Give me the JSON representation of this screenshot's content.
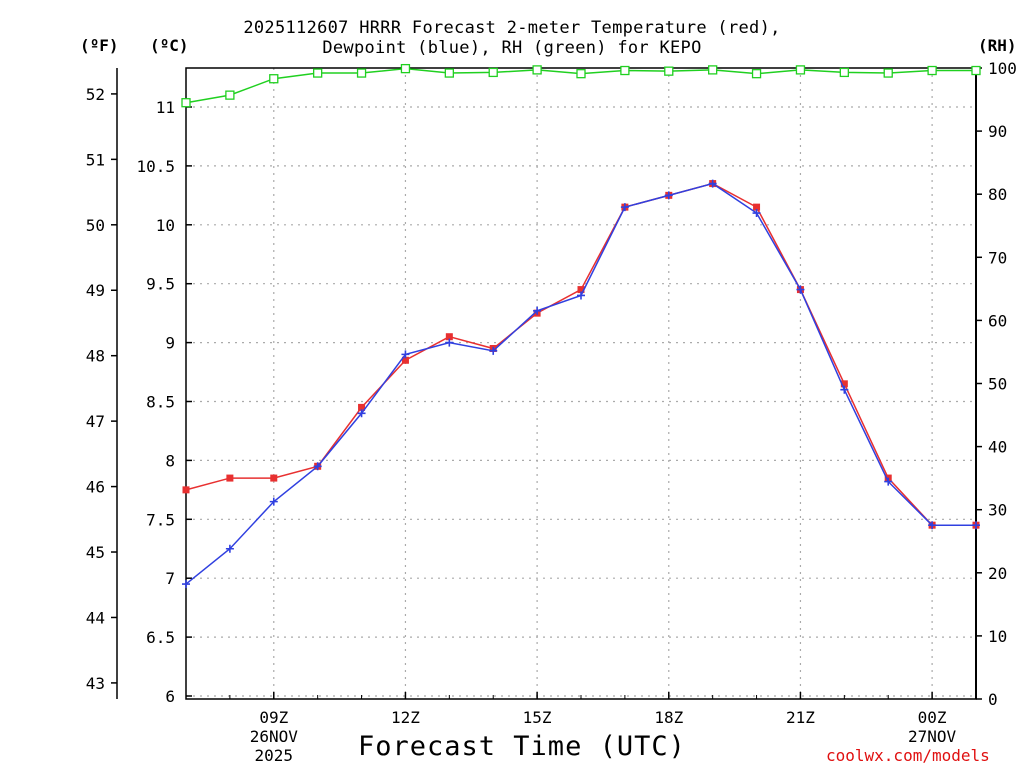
{
  "chart_data": {
    "type": "line",
    "title_line1": "2025112607 HRRR Forecast 2-meter Temperature (red),",
    "title_line2": "Dewpoint (blue), RH (green) for KEPO",
    "xlabel": "Forecast Time (UTC)",
    "credit": "coolwx.com/models",
    "units": {
      "fahrenheit": "(ºF)",
      "celsius": "(ºC)",
      "rh": "(RH)"
    },
    "x_hours": [
      7,
      8,
      9,
      10,
      11,
      12,
      13,
      14,
      15,
      16,
      17,
      18,
      19,
      20,
      21,
      22,
      23,
      24,
      25
    ],
    "xlim": [
      7,
      25
    ],
    "x_ticks": [
      {
        "hour": 9,
        "label": "09Z",
        "date": "26NOV",
        "year": "2025"
      },
      {
        "hour": 12,
        "label": "12Z"
      },
      {
        "hour": 15,
        "label": "15Z"
      },
      {
        "hour": 18,
        "label": "18Z"
      },
      {
        "hour": 21,
        "label": "21Z"
      },
      {
        "hour": 24,
        "label": "00Z",
        "date": "27NOV"
      }
    ],
    "celsius_axis": {
      "ylim": [
        6,
        11.3
      ],
      "ticks": [
        "6",
        "6.5",
        "7",
        "7.5",
        "8",
        "8.5",
        "9",
        "9.5",
        "10",
        "10.5",
        "11"
      ]
    },
    "fahrenheit_axis": {
      "ticks": [
        "43",
        "44",
        "45",
        "46",
        "47",
        "48",
        "49",
        "50",
        "51",
        "52"
      ]
    },
    "rh_axis": {
      "ylim": [
        0,
        100
      ],
      "ticks": [
        "0",
        "10",
        "20",
        "30",
        "40",
        "50",
        "60",
        "70",
        "80",
        "90",
        "100"
      ]
    },
    "grid": true,
    "series": [
      {
        "name": "Temperature",
        "color": "#e83030",
        "unit": "C",
        "marker": "square",
        "values": [
          7.75,
          7.85,
          7.85,
          7.95,
          8.45,
          8.85,
          9.05,
          8.95,
          9.25,
          9.45,
          10.15,
          10.25,
          10.35,
          10.15,
          9.45,
          8.65,
          7.85,
          7.45,
          7.45
        ]
      },
      {
        "name": "Dewpoint",
        "color": "#3040e0",
        "unit": "C",
        "marker": "plus",
        "values": [
          6.95,
          7.25,
          7.65,
          7.95,
          8.4,
          8.9,
          9.0,
          8.93,
          9.27,
          9.4,
          10.15,
          10.25,
          10.35,
          10.1,
          9.45,
          8.6,
          7.82,
          7.45,
          7.45
        ]
      },
      {
        "name": "RH",
        "color": "#20d020",
        "unit": "%",
        "marker": "open-square",
        "values": [
          94.5,
          95.7,
          98.3,
          99.2,
          99.2,
          99.9,
          99.2,
          99.3,
          99.7,
          99.1,
          99.6,
          99.5,
          99.7,
          99.1,
          99.7,
          99.3,
          99.2,
          99.6,
          99.6
        ]
      }
    ]
  }
}
